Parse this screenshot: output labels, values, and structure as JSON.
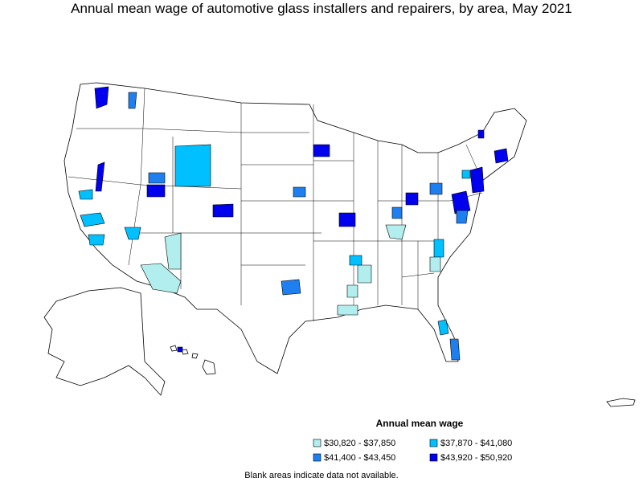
{
  "title": "Annual mean wage of automotive glass installers and repairers, by area, May 2021",
  "legend": {
    "title": "Annual mean wage",
    "items": [
      {
        "label": "$30,820 - $37,850",
        "color": "#b2eeee"
      },
      {
        "label": "$37,870 - $41,080",
        "color": "#00c0ff"
      },
      {
        "label": "$41,400 - $43,450",
        "color": "#1e7ff0"
      },
      {
        "label": "$43,920 - $50,920",
        "color": "#0000ee"
      }
    ]
  },
  "note": "Blank areas indicate data not available."
}
